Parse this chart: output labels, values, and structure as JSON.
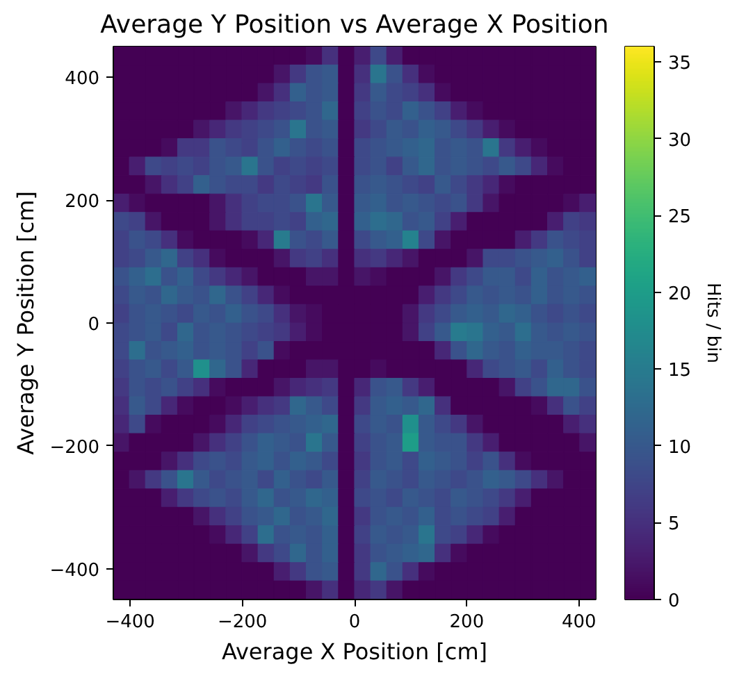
{
  "chart_data": {
    "type": "heatmap",
    "title": "Average Y Position vs Average X Position",
    "xlabel": "Average X Position [cm]",
    "ylabel": "Average Y Position [cm]",
    "clabel": "Hits / bin",
    "xlim": [
      -430,
      430
    ],
    "ylim": [
      -450,
      450
    ],
    "xticks": [
      -400,
      -200,
      0,
      200,
      400
    ],
    "yticks": [
      -400,
      -200,
      0,
      200,
      400
    ],
    "grid": false,
    "clim": [
      0,
      36
    ],
    "cticks": [
      0,
      5,
      10,
      15,
      20,
      25,
      30,
      35
    ],
    "cells": [
      [
        0,
        0,
        0,
        0,
        0,
        0,
        0,
        0,
        0,
        0,
        0,
        0,
        1,
        5,
        0,
        3,
        8,
        3,
        0,
        0,
        0,
        0,
        0,
        0,
        0,
        0,
        0,
        0,
        0,
        0
      ],
      [
        0,
        0,
        0,
        0,
        0,
        0,
        0,
        0,
        0,
        0,
        2,
        6,
        9,
        10,
        0,
        5,
        14,
        9,
        5,
        1,
        0,
        0,
        0,
        0,
        0,
        0,
        0,
        0,
        0,
        0
      ],
      [
        0,
        0,
        0,
        0,
        0,
        0,
        0,
        0,
        0,
        2,
        5,
        11,
        9,
        10,
        0,
        6,
        10,
        8,
        7,
        5,
        1,
        0,
        0,
        0,
        0,
        0,
        0,
        0,
        0,
        0
      ],
      [
        0,
        0,
        0,
        0,
        0,
        0,
        0,
        2,
        4,
        6,
        7,
        8,
        9,
        12,
        0,
        7,
        9,
        8,
        11,
        9,
        7,
        3,
        1,
        0,
        0,
        0,
        0,
        0,
        0,
        0
      ],
      [
        0,
        0,
        0,
        0,
        0,
        2,
        4,
        6,
        7,
        8,
        9,
        14,
        9,
        10,
        0,
        6,
        8,
        10,
        9,
        11,
        10,
        8,
        6,
        3,
        1,
        0,
        0,
        0,
        0,
        0
      ],
      [
        0,
        0,
        0,
        1,
        6,
        6,
        9,
        8,
        7,
        9,
        11,
        9,
        8,
        9,
        0,
        8,
        9,
        10,
        11,
        12,
        9,
        10,
        9,
        14,
        6,
        3,
        1,
        0,
        0,
        0
      ],
      [
        0,
        3,
        8,
        7,
        8,
        7,
        9,
        10,
        14,
        9,
        7,
        8,
        7,
        8,
        0,
        8,
        9,
        7,
        10,
        12,
        9,
        10,
        9,
        8,
        10,
        8,
        4,
        1,
        0,
        0
      ],
      [
        0,
        0,
        2,
        5,
        7,
        11,
        9,
        8,
        8,
        6,
        8,
        7,
        6,
        9,
        0,
        9,
        10,
        9,
        8,
        7,
        10,
        8,
        6,
        4,
        1,
        0,
        0,
        0,
        0,
        0
      ],
      [
        3,
        1,
        0,
        0,
        0,
        0,
        2,
        5,
        7,
        8,
        8,
        9,
        14,
        10,
        0,
        10,
        11,
        9,
        10,
        9,
        8,
        9,
        6,
        2,
        0,
        0,
        0,
        0,
        1,
        3
      ],
      [
        8,
        7,
        2,
        0,
        0,
        0,
        2,
        5,
        7,
        7,
        8,
        7,
        11,
        12,
        0,
        11,
        13,
        12,
        9,
        10,
        7,
        3,
        0,
        0,
        0,
        0,
        0,
        3,
        7,
        6
      ],
      [
        7,
        9,
        8,
        5,
        1,
        0,
        0,
        0,
        1,
        4,
        15,
        9,
        8,
        10,
        0,
        8,
        10,
        11,
        16,
        8,
        2,
        0,
        0,
        0,
        0,
        3,
        6,
        9,
        8,
        7
      ],
      [
        7,
        8,
        10,
        12,
        7,
        5,
        1,
        0,
        0,
        0,
        2,
        6,
        7,
        5,
        0,
        5,
        6,
        4,
        2,
        0,
        0,
        0,
        2,
        8,
        8,
        9,
        10,
        11,
        9,
        7
      ],
      [
        9,
        11,
        13,
        9,
        11,
        8,
        6,
        4,
        2,
        0,
        0,
        0,
        2,
        2,
        0,
        2,
        1,
        0,
        0,
        0,
        2,
        6,
        8,
        10,
        10,
        8,
        11,
        9,
        10,
        11
      ],
      [
        8,
        10,
        9,
        12,
        10,
        9,
        12,
        9,
        7,
        4,
        1,
        0,
        0,
        0,
        0,
        0,
        0,
        0,
        0,
        3,
        6,
        8,
        10,
        9,
        10,
        9,
        11,
        9,
        10,
        9
      ],
      [
        7,
        9,
        10,
        9,
        8,
        10,
        9,
        11,
        9,
        8,
        5,
        2,
        1,
        0,
        0,
        0,
        0,
        0,
        2,
        6,
        8,
        10,
        11,
        10,
        12,
        11,
        9,
        8,
        9,
        8
      ],
      [
        8,
        9,
        10,
        8,
        12,
        9,
        10,
        9,
        8,
        7,
        6,
        3,
        1,
        0,
        0,
        0,
        0,
        0,
        2,
        7,
        10,
        15,
        14,
        11,
        10,
        13,
        10,
        9,
        10,
        9
      ],
      [
        8,
        13,
        9,
        10,
        11,
        9,
        10,
        9,
        7,
        9,
        1,
        0,
        0,
        0,
        0,
        0,
        0,
        0,
        0,
        0,
        4,
        9,
        12,
        10,
        9,
        11,
        10,
        10,
        9,
        8
      ],
      [
        7,
        9,
        10,
        8,
        10,
        18,
        12,
        9,
        4,
        0,
        0,
        0,
        2,
        2,
        0,
        0,
        1,
        0,
        0,
        0,
        0,
        0,
        4,
        8,
        9,
        10,
        8,
        11,
        9,
        8
      ],
      [
        6,
        9,
        8,
        9,
        7,
        5,
        1,
        0,
        0,
        0,
        2,
        4,
        5,
        6,
        0,
        4,
        9,
        10,
        6,
        3,
        0,
        0,
        0,
        0,
        2,
        7,
        9,
        12,
        12,
        9
      ],
      [
        5,
        10,
        8,
        4,
        1,
        0,
        0,
        1,
        3,
        5,
        6,
        12,
        10,
        8,
        0,
        6,
        10,
        11,
        10,
        12,
        5,
        0,
        0,
        0,
        0,
        0,
        1,
        5,
        9,
        7
      ],
      [
        4,
        8,
        1,
        0,
        0,
        0,
        1,
        4,
        7,
        8,
        9,
        10,
        11,
        12,
        0,
        8,
        10,
        9,
        18,
        10,
        8,
        6,
        2,
        0,
        0,
        0,
        0,
        0,
        3,
        5
      ],
      [
        2,
        0,
        0,
        0,
        0,
        2,
        5,
        7,
        9,
        11,
        10,
        9,
        14,
        10,
        0,
        7,
        9,
        10,
        20,
        10,
        9,
        9,
        6,
        3,
        0,
        0,
        0,
        0,
        0,
        2
      ],
      [
        0,
        0,
        0,
        2,
        5,
        8,
        9,
        8,
        10,
        11,
        9,
        11,
        10,
        8,
        0,
        6,
        9,
        10,
        8,
        11,
        10,
        9,
        7,
        9,
        5,
        1,
        0,
        0,
        0,
        0
      ],
      [
        0,
        2,
        6,
        9,
        14,
        10,
        8,
        9,
        10,
        8,
        11,
        9,
        8,
        10,
        0,
        7,
        10,
        9,
        8,
        10,
        9,
        8,
        9,
        11,
        10,
        8,
        5,
        2,
        0,
        0
      ],
      [
        0,
        0,
        0,
        3,
        6,
        8,
        9,
        8,
        10,
        12,
        9,
        10,
        12,
        11,
        0,
        8,
        9,
        8,
        10,
        9,
        8,
        10,
        9,
        8,
        6,
        3,
        0,
        0,
        0,
        0
      ],
      [
        0,
        0,
        0,
        0,
        0,
        2,
        5,
        7,
        9,
        10,
        12,
        9,
        10,
        12,
        0,
        6,
        9,
        10,
        9,
        11,
        8,
        9,
        8,
        7,
        3,
        0,
        0,
        0,
        0,
        0
      ],
      [
        0,
        0,
        0,
        0,
        0,
        0,
        1,
        4,
        7,
        13,
        9,
        10,
        9,
        11,
        0,
        7,
        10,
        9,
        10,
        14,
        8,
        7,
        4,
        1,
        0,
        0,
        0,
        0,
        0,
        0
      ],
      [
        0,
        0,
        0,
        0,
        0,
        0,
        0,
        0,
        2,
        6,
        8,
        12,
        9,
        11,
        0,
        6,
        9,
        10,
        11,
        12,
        5,
        1,
        0,
        0,
        0,
        0,
        0,
        0,
        0,
        0
      ],
      [
        0,
        0,
        0,
        0,
        0,
        0,
        0,
        0,
        0,
        0,
        3,
        6,
        9,
        10,
        0,
        6,
        12,
        9,
        5,
        1,
        0,
        0,
        0,
        0,
        0,
        0,
        0,
        0,
        0,
        0
      ],
      [
        0,
        0,
        0,
        0,
        0,
        0,
        0,
        0,
        0,
        0,
        0,
        0,
        2,
        5,
        0,
        4,
        6,
        2,
        0,
        0,
        0,
        0,
        0,
        0,
        0,
        0,
        0,
        0,
        0,
        0
      ]
    ]
  }
}
